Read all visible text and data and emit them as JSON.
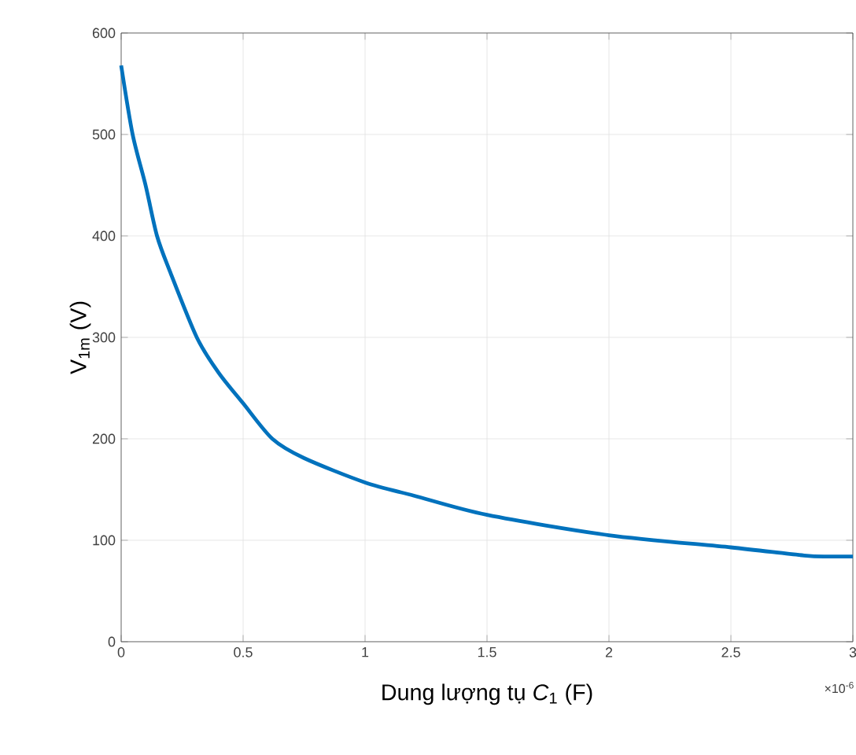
{
  "chart_data": {
    "type": "line",
    "xlabel": "Dung lượng tụ *C*$_{1}$ (F)",
    "ylabel": "V$_{1m}$ (V)",
    "annotations": [
      "×10$^{-6}$"
    ],
    "series": [
      {
        "color": "#0072bd",
        "x": [
          0,
          0.047,
          0.1,
          0.147,
          0.2,
          0.31,
          0.4,
          0.5,
          0.62,
          0.75,
          1,
          1.2,
          1.5,
          2,
          2.5,
          2.8,
          2.9,
          3
        ],
        "values": [
          568,
          500,
          450,
          400,
          365,
          300,
          265,
          235,
          200,
          181,
          157,
          144,
          125,
          105,
          93,
          85,
          84,
          84
        ]
      }
    ],
    "xlim": [
      0,
      3
    ],
    "ylim": [
      0,
      600
    ],
    "xticks": [
      0,
      0.5,
      1,
      1.5,
      2,
      2.5,
      3
    ],
    "yticks": [
      0,
      100,
      200,
      300,
      400,
      500,
      600
    ],
    "grid": true,
    "marker": "none",
    "line_style": "solid"
  }
}
